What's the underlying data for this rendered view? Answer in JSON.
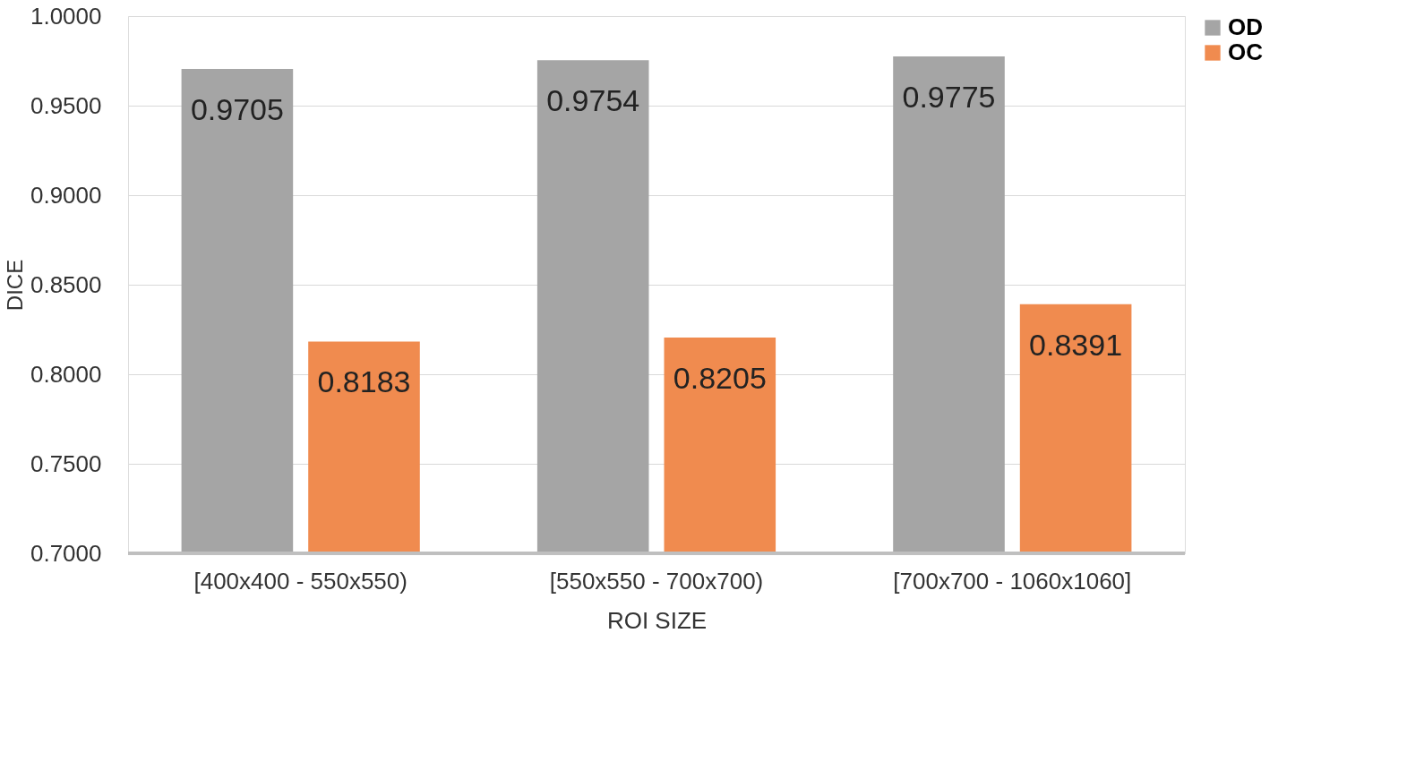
{
  "chart_data": {
    "type": "bar",
    "xlabel": "ROI SIZE",
    "ylabel": "DICE",
    "categories": [
      "[400x400 - 550x550)",
      "[550x550 - 700x700)",
      "[700x700 - 1060x1060]"
    ],
    "series": [
      {
        "name": "OD",
        "color": "#a5a5a5",
        "values": [
          0.9705,
          0.9754,
          0.9775
        ]
      },
      {
        "name": "OC",
        "color": "#f08b4f",
        "values": [
          0.8183,
          0.8205,
          0.8391
        ]
      }
    ],
    "ylim": [
      0.7,
      1.0
    ],
    "yticks": [
      {
        "value": 0.7,
        "label": "0.7000"
      },
      {
        "value": 0.75,
        "label": "0.7500"
      },
      {
        "value": 0.8,
        "label": "0.8000"
      },
      {
        "value": 0.85,
        "label": "0.8500"
      },
      {
        "value": 0.9,
        "label": "0.9000"
      },
      {
        "value": 0.95,
        "label": "0.9500"
      },
      {
        "value": 1.0,
        "label": "1.0000"
      }
    ],
    "grid": "y",
    "legend": "right",
    "data_labels": true
  }
}
